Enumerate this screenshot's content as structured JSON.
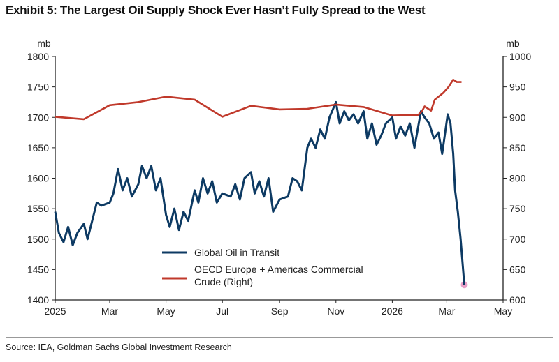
{
  "title": "Exhibit 5: The Largest Oil Supply Shock Ever Hasn’t Fully Spread to the West",
  "source": "Source: IEA, Goldman Sachs Global Investment Research",
  "chart_data": {
    "type": "line",
    "left_axis": {
      "unit": "mb",
      "ylim": [
        1400,
        1800
      ],
      "ticks": [
        "1400",
        "1450",
        "1500",
        "1550",
        "1600",
        "1650",
        "1700",
        "1750",
        "1800"
      ]
    },
    "right_axis": {
      "unit": "mb",
      "ylim": [
        600,
        1000
      ],
      "ticks": [
        "600",
        "650",
        "700",
        "750",
        "800",
        "850",
        "900",
        "950",
        "1000"
      ]
    },
    "x_axis": {
      "xlim": [
        "2025-01-01",
        "2026-05-01"
      ],
      "ticks": [
        {
          "date": "2025-01-01",
          "label": "2025"
        },
        {
          "date": "2025-03-01",
          "label": "Mar"
        },
        {
          "date": "2025-05-01",
          "label": "May"
        },
        {
          "date": "2025-07-01",
          "label": "Jul"
        },
        {
          "date": "2025-09-01",
          "label": "Sep"
        },
        {
          "date": "2025-11-01",
          "label": "Nov"
        },
        {
          "date": "2026-01-01",
          "label": "2026"
        },
        {
          "date": "2026-03-01",
          "label": "Mar"
        },
        {
          "date": "2026-05-01",
          "label": "May"
        }
      ]
    },
    "legend_placement": "bottom-center",
    "series": [
      {
        "name": "Global Oil in Transit",
        "axis": "left",
        "color": "#0d3a63",
        "marker_last": "#e8a0c8",
        "points": [
          [
            "2025-01-01",
            1545
          ],
          [
            "2025-01-05",
            1510
          ],
          [
            "2025-01-10",
            1495
          ],
          [
            "2025-01-15",
            1520
          ],
          [
            "2025-01-20",
            1490
          ],
          [
            "2025-01-25",
            1510
          ],
          [
            "2025-02-01",
            1525
          ],
          [
            "2025-02-05",
            1500
          ],
          [
            "2025-02-10",
            1530
          ],
          [
            "2025-02-15",
            1560
          ],
          [
            "2025-02-20",
            1555
          ],
          [
            "2025-03-01",
            1560
          ],
          [
            "2025-03-05",
            1575
          ],
          [
            "2025-03-10",
            1615
          ],
          [
            "2025-03-15",
            1580
          ],
          [
            "2025-03-20",
            1600
          ],
          [
            "2025-03-25",
            1570
          ],
          [
            "2025-04-01",
            1590
          ],
          [
            "2025-04-05",
            1620
          ],
          [
            "2025-04-10",
            1600
          ],
          [
            "2025-04-15",
            1620
          ],
          [
            "2025-04-20",
            1580
          ],
          [
            "2025-04-25",
            1600
          ],
          [
            "2025-05-01",
            1540
          ],
          [
            "2025-05-05",
            1520
          ],
          [
            "2025-05-10",
            1550
          ],
          [
            "2025-05-15",
            1515
          ],
          [
            "2025-05-20",
            1545
          ],
          [
            "2025-05-25",
            1530
          ],
          [
            "2025-06-01",
            1580
          ],
          [
            "2025-06-05",
            1560
          ],
          [
            "2025-06-10",
            1600
          ],
          [
            "2025-06-15",
            1575
          ],
          [
            "2025-06-20",
            1595
          ],
          [
            "2025-06-25",
            1560
          ],
          [
            "2025-07-01",
            1575
          ],
          [
            "2025-07-10",
            1570
          ],
          [
            "2025-07-15",
            1590
          ],
          [
            "2025-07-20",
            1565
          ],
          [
            "2025-07-25",
            1600
          ],
          [
            "2025-08-01",
            1610
          ],
          [
            "2025-08-05",
            1575
          ],
          [
            "2025-08-10",
            1595
          ],
          [
            "2025-08-15",
            1570
          ],
          [
            "2025-08-20",
            1600
          ],
          [
            "2025-08-25",
            1545
          ],
          [
            "2025-09-01",
            1565
          ],
          [
            "2025-09-10",
            1570
          ],
          [
            "2025-09-15",
            1600
          ],
          [
            "2025-09-20",
            1595
          ],
          [
            "2025-09-25",
            1580
          ],
          [
            "2025-10-01",
            1650
          ],
          [
            "2025-10-05",
            1665
          ],
          [
            "2025-10-10",
            1650
          ],
          [
            "2025-10-15",
            1680
          ],
          [
            "2025-10-20",
            1665
          ],
          [
            "2025-10-25",
            1700
          ],
          [
            "2025-11-01",
            1725
          ],
          [
            "2025-11-05",
            1690
          ],
          [
            "2025-11-10",
            1710
          ],
          [
            "2025-11-15",
            1695
          ],
          [
            "2025-11-20",
            1705
          ],
          [
            "2025-11-25",
            1690
          ],
          [
            "2025-12-01",
            1710
          ],
          [
            "2025-12-05",
            1665
          ],
          [
            "2025-12-10",
            1690
          ],
          [
            "2025-12-15",
            1655
          ],
          [
            "2025-12-20",
            1670
          ],
          [
            "2025-12-25",
            1690
          ],
          [
            "2026-01-01",
            1700
          ],
          [
            "2026-01-05",
            1665
          ],
          [
            "2026-01-10",
            1685
          ],
          [
            "2026-01-15",
            1670
          ],
          [
            "2026-01-20",
            1690
          ],
          [
            "2026-01-25",
            1650
          ],
          [
            "2026-02-01",
            1710
          ],
          [
            "2026-02-05",
            1700
          ],
          [
            "2026-02-10",
            1690
          ],
          [
            "2026-02-15",
            1665
          ],
          [
            "2026-02-20",
            1675
          ],
          [
            "2026-02-24",
            1640
          ],
          [
            "2026-03-02",
            1705
          ],
          [
            "2026-03-05",
            1690
          ],
          [
            "2026-03-08",
            1640
          ],
          [
            "2026-03-10",
            1580
          ],
          [
            "2026-03-13",
            1545
          ],
          [
            "2026-03-16",
            1500
          ],
          [
            "2026-03-20",
            1425
          ]
        ]
      },
      {
        "name": "OECD Europe + Americas Commercial Crude (Right)",
        "legend_lines": [
          "OECD Europe + Americas Commercial",
          "Crude (Right)"
        ],
        "axis": "right",
        "color": "#c0392b",
        "points": [
          [
            "2025-01-01",
            901
          ],
          [
            "2025-02-01",
            897
          ],
          [
            "2025-03-01",
            920
          ],
          [
            "2025-04-01",
            925
          ],
          [
            "2025-05-01",
            934
          ],
          [
            "2025-06-01",
            929
          ],
          [
            "2025-07-01",
            901
          ],
          [
            "2025-08-01",
            919
          ],
          [
            "2025-09-01",
            913
          ],
          [
            "2025-10-01",
            914
          ],
          [
            "2025-11-01",
            921
          ],
          [
            "2025-12-01",
            917
          ],
          [
            "2026-01-01",
            903
          ],
          [
            "2026-01-29",
            904
          ],
          [
            "2026-02-02",
            910
          ],
          [
            "2026-02-05",
            918
          ],
          [
            "2026-02-12",
            911
          ],
          [
            "2026-02-16",
            929
          ],
          [
            "2026-02-25",
            940
          ],
          [
            "2026-03-03",
            950
          ],
          [
            "2026-03-08",
            962
          ],
          [
            "2026-03-12",
            958
          ],
          [
            "2026-03-17",
            958
          ]
        ]
      }
    ]
  }
}
